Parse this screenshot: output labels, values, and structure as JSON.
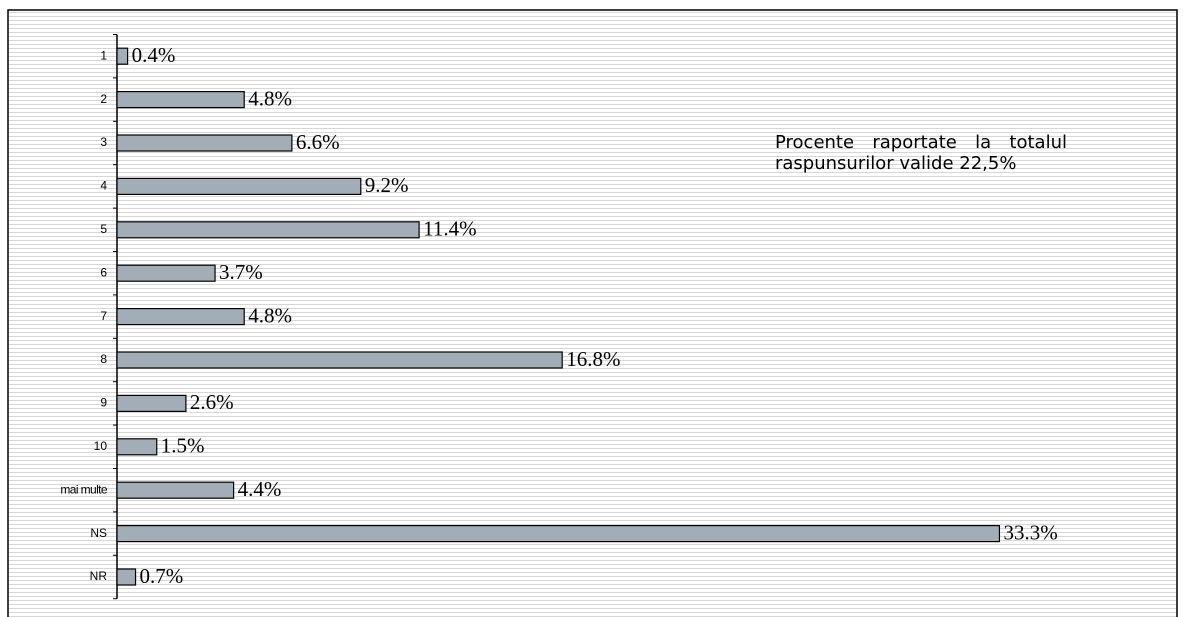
{
  "chart_data": {
    "type": "bar",
    "orientation": "horizontal",
    "categories": [
      "1",
      "2",
      "3",
      "4",
      "5",
      "6",
      "7",
      "8",
      "9",
      "10",
      "mai multe",
      "NS",
      "NR"
    ],
    "values": [
      0.4,
      4.8,
      6.6,
      9.2,
      11.4,
      3.7,
      4.8,
      16.8,
      2.6,
      1.5,
      4.4,
      33.3,
      0.7
    ],
    "value_labels": [
      "0.4%",
      "4.8%",
      "6.6%",
      "9.2%",
      "11.4%",
      "3.7%",
      "4.8%",
      "16.8%",
      "2.6%",
      "1.5%",
      "4.4%",
      "33.3%",
      "0.7%"
    ],
    "color": "#a3adb8",
    "xlim": [
      0,
      40
    ],
    "annotation": "Procente raportate la totalul raspunsurilor valide 22,5%"
  }
}
